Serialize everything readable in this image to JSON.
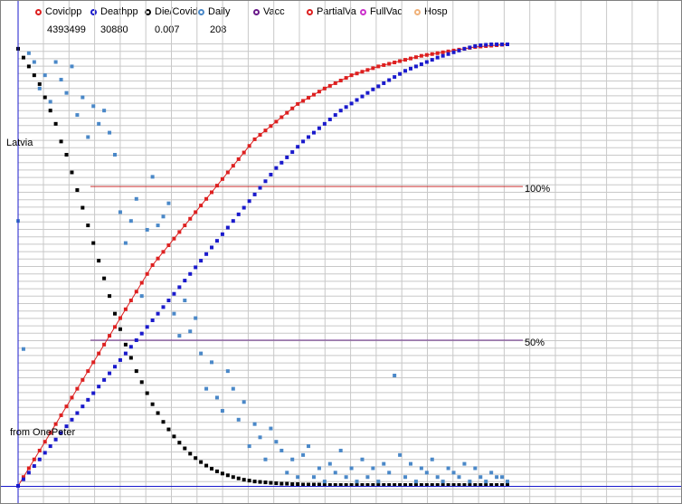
{
  "legend": {
    "items": [
      {
        "label": "Covidpp",
        "color": "#dd2020"
      },
      {
        "label": "Deathpp",
        "color": "#1a1acc"
      },
      {
        "label": "Die/Covid",
        "color": "#000000"
      },
      {
        "label": "Daily",
        "color": "#4a88c8"
      },
      {
        "label": "Vacc",
        "color": "#6a1a8a"
      },
      {
        "label": "PartialVa",
        "color": "#dd2020"
      },
      {
        "label": "FullVac",
        "color": "#cc33cc"
      },
      {
        "label": "Hosp",
        "color": "#f0b27a"
      }
    ],
    "values": [
      "4393499",
      "30880",
      "0.007",
      "208"
    ]
  },
  "annotations": {
    "country": "Latvia",
    "source": "from OnePeter",
    "ref_100": "100%",
    "ref_50": "50%"
  },
  "colors": {
    "covidpp": "#dd2020",
    "deathpp": "#1a1acc",
    "die_covid": "#000000",
    "daily": "#4a88c8",
    "ref_100_line": "#cc3333",
    "ref_50_line": "#6a2a8a",
    "grid": "#c8c8c8",
    "axis": "#1a1acc"
  },
  "chart_data": {
    "type": "scatter",
    "grid": true,
    "ylim": [
      0,
      100
    ],
    "reference_lines": [
      {
        "label": "100%",
        "y": 67.8
      },
      {
        "label": "50%",
        "y": 33.0
      }
    ],
    "series": [
      {
        "name": "Covidpp",
        "marker": "line+square",
        "values": [
          0,
          2,
          4,
          6,
          8,
          10,
          12,
          14,
          16,
          18,
          20,
          22,
          24,
          26,
          28,
          30,
          32,
          34,
          36,
          38,
          40,
          42,
          44,
          46,
          48,
          50,
          51.5,
          53,
          54.5,
          56,
          57.5,
          59,
          60.5,
          62,
          63.5,
          65,
          66.5,
          68,
          69.5,
          71,
          72.5,
          74,
          75.5,
          77,
          78.5,
          79.5,
          80.5,
          81.5,
          82.5,
          83.5,
          84.5,
          85.5,
          86.5,
          87.2,
          87.9,
          88.6,
          89.3,
          90,
          90.6,
          91.2,
          91.8,
          92.4,
          93,
          93.4,
          93.8,
          94.2,
          94.6,
          95,
          95.3,
          95.6,
          95.9,
          96.2,
          96.5,
          96.8,
          97.1,
          97.4,
          97.6,
          97.8,
          98,
          98.2,
          98.4,
          98.6,
          98.8,
          99,
          99.2,
          99.4,
          99.5,
          99.6,
          99.7,
          99.8,
          99.9,
          100
        ]
      },
      {
        "name": "Deathpp",
        "values": [
          0,
          1.5,
          3,
          4.5,
          6,
          7.5,
          9,
          10.5,
          12,
          13.5,
          15,
          16.5,
          18,
          19.5,
          21,
          22.5,
          24,
          25.5,
          27,
          28.5,
          30,
          31.5,
          33,
          34.5,
          36,
          37.5,
          39,
          40.5,
          42,
          43.5,
          45,
          46.5,
          48,
          49.5,
          51,
          52.5,
          54,
          55.5,
          57,
          58.5,
          60,
          61.5,
          63,
          64.5,
          66,
          67.5,
          69,
          70.5,
          72,
          73.2,
          74.4,
          75.6,
          76.8,
          78,
          79,
          80,
          81,
          82,
          83,
          84,
          85,
          85.8,
          86.6,
          87.4,
          88.2,
          89,
          89.8,
          90.5,
          91.2,
          91.9,
          92.6,
          93.3,
          94,
          94.5,
          95,
          95.5,
          96,
          96.5,
          97,
          97.4,
          97.8,
          98.2,
          98.6,
          99,
          99.3,
          99.6,
          99.8,
          99.9,
          100,
          100,
          100,
          100
        ]
      },
      {
        "name": "Die/Covid",
        "values": [
          99,
          97,
          95,
          93,
          91,
          88,
          85,
          82,
          78,
          75,
          71,
          67,
          63,
          59,
          55,
          51,
          47,
          43,
          39,
          35.5,
          32,
          29,
          26,
          23.5,
          21,
          18.5,
          16.5,
          14.5,
          12.8,
          11.2,
          9.8,
          8.5,
          7.3,
          6.3,
          5.4,
          4.6,
          3.9,
          3.3,
          2.8,
          2.4,
          2,
          1.7,
          1.4,
          1.2,
          1,
          0.9,
          0.8,
          0.7,
          0.6,
          0.5,
          0.5,
          0.4,
          0.4,
          0.3,
          0.3,
          0.3,
          0.3,
          0.2,
          0.2,
          0.2,
          0.2,
          0.2,
          0.2,
          0.2,
          0.2,
          0.2,
          0.2,
          0.2,
          0.2,
          0.2,
          0.2,
          0.2,
          0.2,
          0.2,
          0.2,
          0.2,
          0.2,
          0.2,
          0.2,
          0.2,
          0.2,
          0.2,
          0.2,
          0.2,
          0.2,
          0.2,
          0.2,
          0.2,
          0.2,
          0.2,
          0.2,
          0.2
        ]
      },
      {
        "name": "Daily",
        "values": [
          60,
          31,
          98,
          96,
          90,
          93,
          87,
          96,
          92,
          89,
          95,
          84,
          88,
          79,
          86,
          82,
          85,
          80,
          75,
          62,
          55,
          60,
          65,
          43,
          58,
          70,
          59,
          61,
          64,
          39,
          34,
          42,
          35,
          38,
          30,
          22,
          28,
          20,
          17,
          26,
          22,
          15,
          19,
          9,
          14,
          11,
          6,
          13,
          10,
          8,
          3,
          6,
          2,
          7,
          9,
          2,
          4,
          1,
          5,
          3,
          8,
          2,
          4,
          1,
          6,
          2,
          4,
          1,
          5,
          3,
          25,
          7,
          2,
          5,
          1,
          4,
          3,
          6,
          2,
          1,
          4,
          3,
          2,
          5,
          1,
          4,
          2,
          1,
          3,
          2,
          2,
          1
        ]
      }
    ]
  }
}
